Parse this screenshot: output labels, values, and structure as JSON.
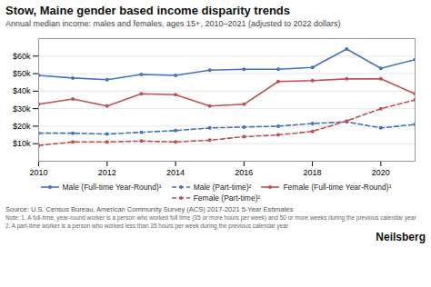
{
  "chart_data": {
    "type": "line",
    "title": "Stow, Maine gender based income disparity trends",
    "subtitle": "Annual median income: males and females, ages 15+, 2010–2021 (adjusted to 2022 dollars)",
    "x": [
      2010,
      2011,
      2012,
      2013,
      2014,
      2015,
      2016,
      2017,
      2018,
      2019,
      2020,
      2021
    ],
    "series": [
      {
        "name": "Male (Full-time Year-Round)¹",
        "color": "#4472C4",
        "line_style": "solid",
        "marker": "circle",
        "values": [
          49000,
          47500,
          46500,
          49500,
          49000,
          52000,
          52500,
          52500,
          53500,
          64000,
          53000,
          58000
        ]
      },
      {
        "name": "Male (Part-time)²",
        "color": "#4472C4",
        "line_style": "dashed",
        "marker": "circle",
        "values": [
          16000,
          16000,
          15500,
          16500,
          17500,
          19000,
          19500,
          20000,
          21500,
          22500,
          19000,
          21000
        ]
      },
      {
        "name": "Female (Full-time Year-Round)¹",
        "color": "#C0504D",
        "line_style": "solid",
        "marker": "circle",
        "values": [
          32500,
          35500,
          31500,
          38500,
          38000,
          31500,
          32500,
          45500,
          46000,
          47000,
          47000,
          38500
        ]
      },
      {
        "name": "Female (Part-time)²",
        "color": "#C0504D",
        "line_style": "dashed",
        "marker": "circle",
        "values": [
          9000,
          11000,
          11000,
          11500,
          11000,
          12000,
          14000,
          15000,
          17000,
          23000,
          30000,
          35000
        ]
      }
    ],
    "xlim": [
      2010,
      2021
    ],
    "xticks": [
      2010,
      2012,
      2014,
      2016,
      2018,
      2020
    ],
    "ylim": [
      0,
      70000
    ],
    "yticks": [
      {
        "value": 10000,
        "label": "$10k"
      },
      {
        "value": 20000,
        "label": "$20k"
      },
      {
        "value": 30000,
        "label": "$30k"
      },
      {
        "value": 40000,
        "label": "$40k"
      },
      {
        "value": 50000,
        "label": "$50k"
      },
      {
        "value": 60000,
        "label": "$60k"
      }
    ],
    "grid": true,
    "legend": "bottom",
    "source": "Source: U.S. Census Bureau, American Community Survey (ACS) 2017-2021 5-Year Estimates",
    "notes": [
      "Note: 1. A full-time, year-round worker is a person who worked full time (35 or more hours per week) and 50 or more weeks during the previous calendar year",
      "2. A part-time worker is a person who worked less than 35 hours per week during the previous calendar year"
    ],
    "brand": "Neilsberg"
  }
}
